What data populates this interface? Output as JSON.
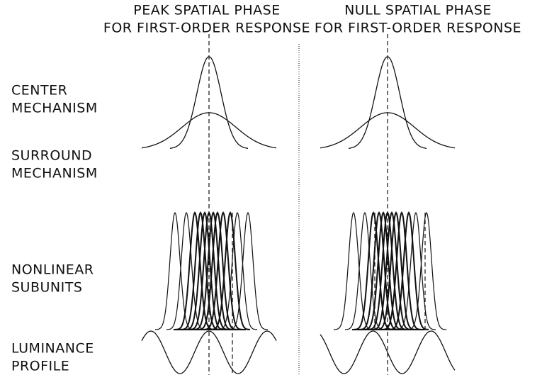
{
  "columns": [
    {
      "title": [
        "PEAK SPATIAL PHASE",
        "FOR FIRST-ORDER RESPONSE"
      ]
    },
    {
      "title": [
        "NULL SPATIAL PHASE",
        "FOR FIRST-ORDER RESPONSE"
      ]
    }
  ],
  "rows": [
    {
      "label": [
        "CENTER",
        "MECHANISM"
      ]
    },
    {
      "label": [
        "SURROUND",
        "MECHANISM"
      ]
    },
    {
      "label": [
        "NONLINEAR",
        "SUBUNITS"
      ]
    },
    {
      "label": [
        "LUMINANCE",
        "PROFILE"
      ]
    }
  ]
}
